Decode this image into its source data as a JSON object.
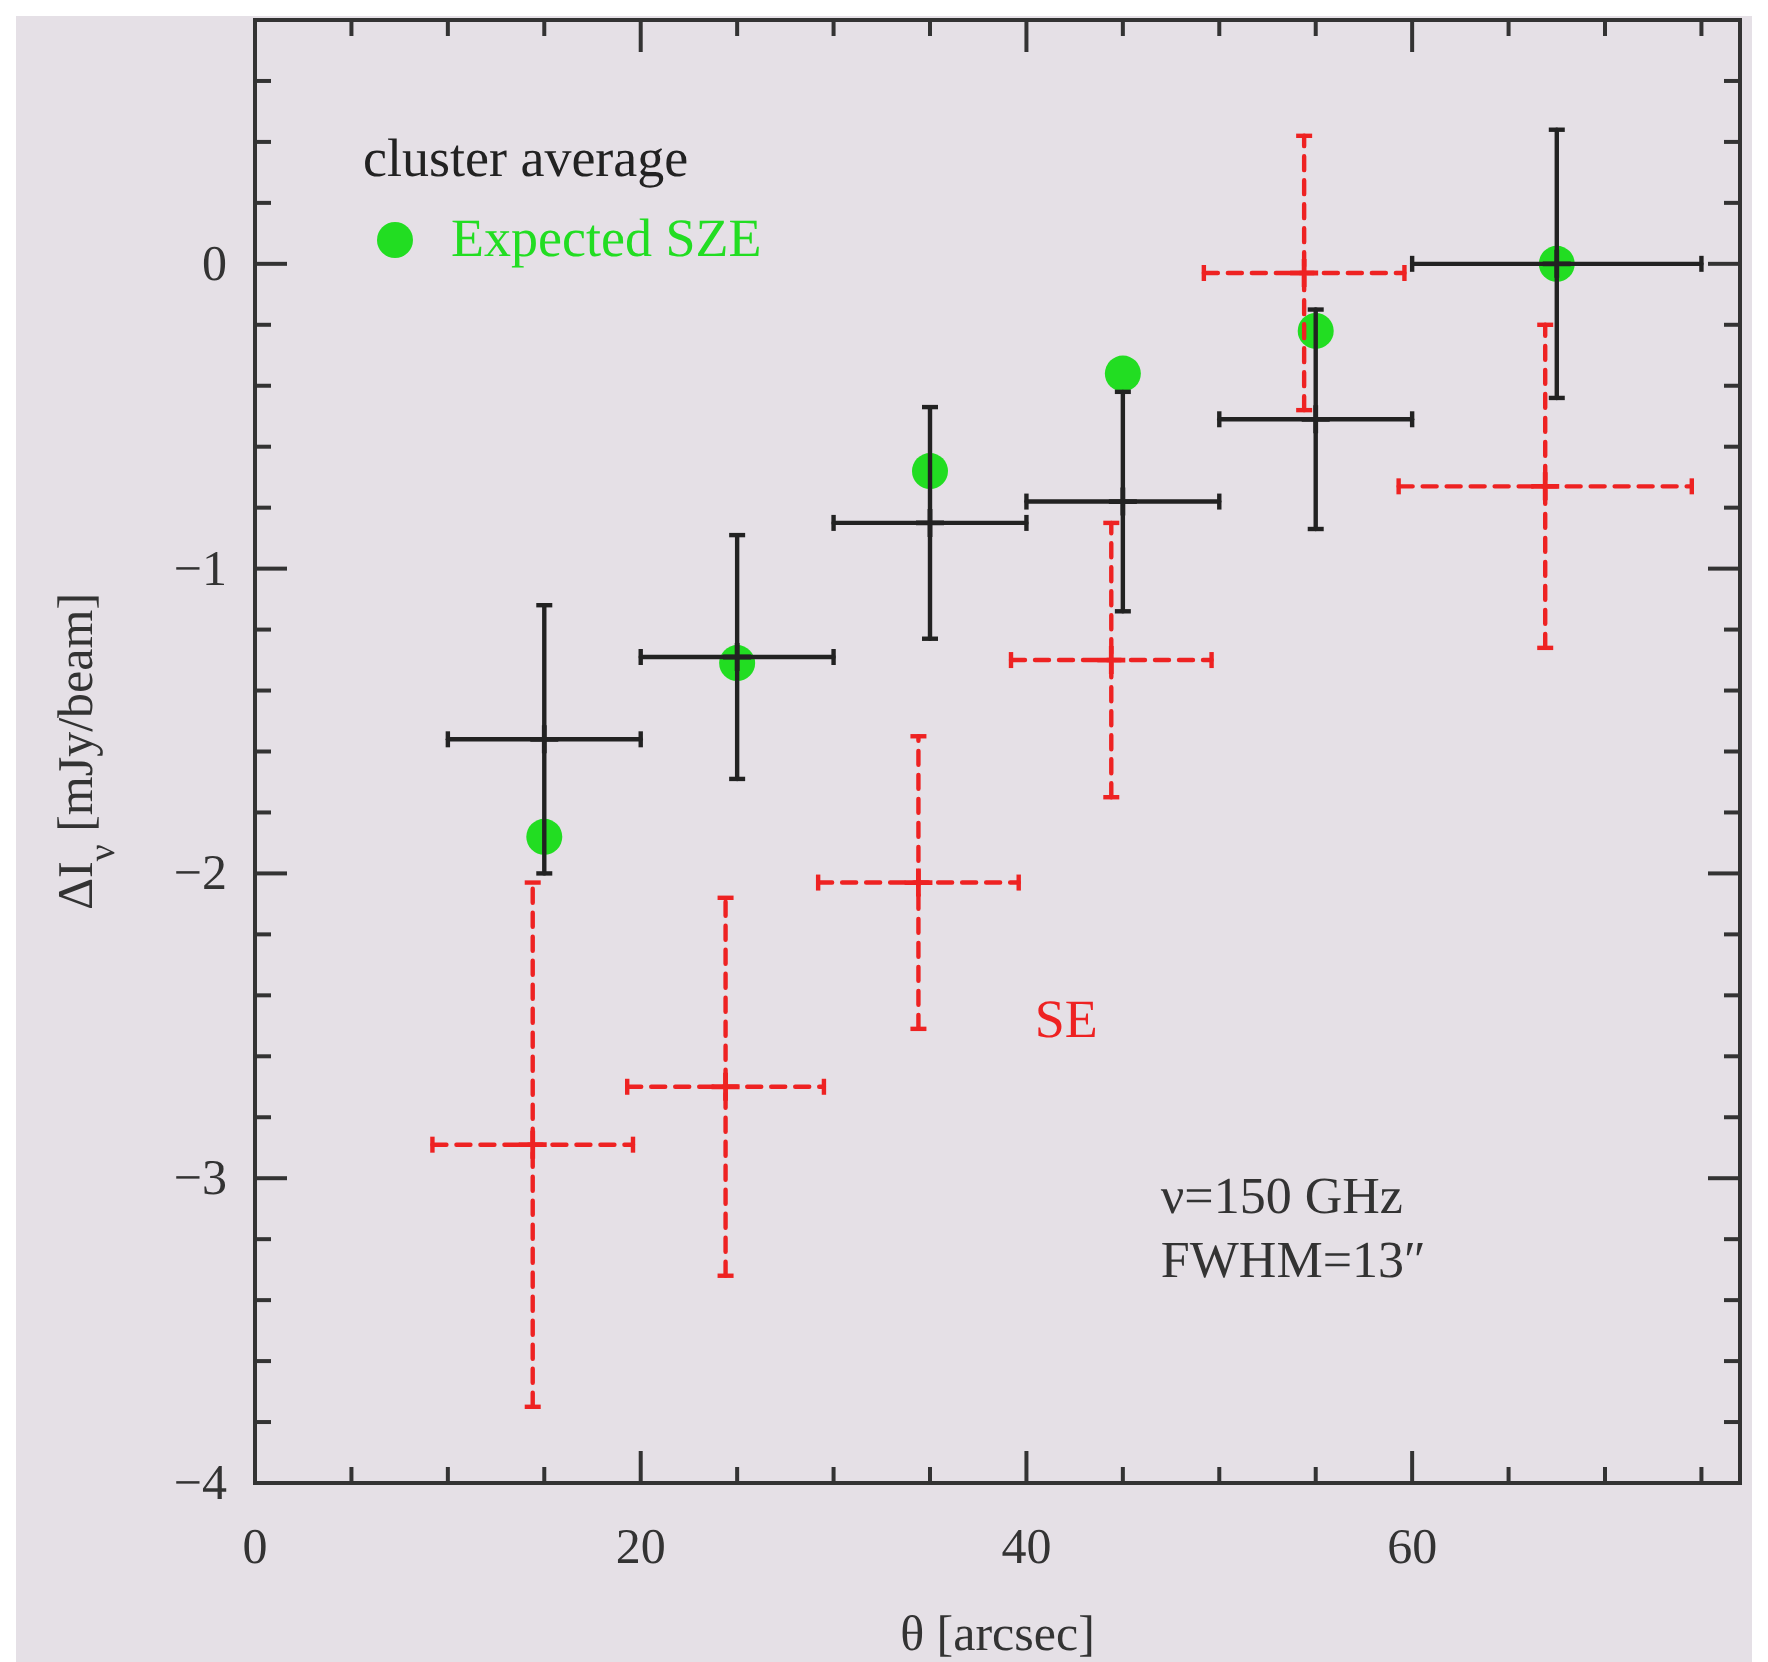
{
  "chart_data": {
    "type": "scatter",
    "xlabel": "θ [arcsec]",
    "ylabel": "ΔI$_{ν}$ [mJy/beam]",
    "xlim": [
      0,
      77
    ],
    "ylim": [
      -4,
      0.8
    ],
    "xticks": [
      0,
      {
        "value": 5,
        "label": null
      },
      {
        "value": 10,
        "label": null
      },
      {
        "value": 15,
        "label": null
      },
      20,
      {
        "value": 25,
        "label": null
      },
      {
        "value": 30,
        "label": null
      },
      {
        "value": 35,
        "label": null
      },
      40,
      {
        "value": 45,
        "label": null
      },
      {
        "value": 50,
        "label": null
      },
      {
        "value": 55,
        "label": null
      },
      60,
      {
        "value": 65,
        "label": null
      },
      {
        "value": 70,
        "label": null
      },
      {
        "value": 75,
        "label": null
      }
    ],
    "yticks": [
      -4,
      {
        "value": -3.8,
        "label": null
      },
      {
        "value": -3.6,
        "label": null
      },
      {
        "value": -3.4,
        "label": null
      },
      {
        "value": -3.2,
        "label": null
      },
      -3,
      {
        "value": -2.8,
        "label": null
      },
      {
        "value": -2.6,
        "label": null
      },
      {
        "value": -2.4,
        "label": null
      },
      {
        "value": -2.2,
        "label": null
      },
      -2,
      {
        "value": -1.8,
        "label": null
      },
      {
        "value": -1.6,
        "label": null
      },
      {
        "value": -1.4,
        "label": null
      },
      {
        "value": -1.2,
        "label": null
      },
      -1,
      {
        "value": -0.8,
        "label": null
      },
      {
        "value": -0.6,
        "label": null
      },
      {
        "value": -0.4,
        "label": null
      },
      {
        "value": -0.2,
        "label": null
      },
      0,
      {
        "value": 0.2,
        "label": null
      },
      {
        "value": 0.4,
        "label": null
      },
      {
        "value": 0.6,
        "label": null
      }
    ],
    "legend": "top left",
    "series": [
      {
        "name": "cluster average",
        "color": "#222222",
        "marker": "cross",
        "line_style": "solid",
        "x": [
          15,
          25,
          35,
          45,
          55,
          67.5
        ],
        "values": [
          -1.56,
          -1.29,
          -0.85,
          -0.78,
          -0.51,
          0
        ],
        "errors": [
          0.44,
          0.4,
          0.38,
          0.36,
          0.36,
          0.44
        ],
        "xerrors": [
          5,
          5,
          5,
          5,
          5,
          7.5
        ]
      },
      {
        "name": "Expected SZE",
        "color": "#22dd22",
        "marker": "circle",
        "x": [
          15,
          25,
          35,
          45,
          55,
          67.5
        ],
        "values": [
          -1.88,
          -1.31,
          -0.68,
          -0.36,
          -0.22,
          0
        ]
      },
      {
        "name": "SE",
        "color": "#ee2222",
        "marker": "cross",
        "line_style": "dashed",
        "x": [
          14.4,
          24.4,
          34.4,
          44.4,
          54.4,
          66.9
        ],
        "values": [
          -2.89,
          -2.7,
          -2.03,
          -1.3,
          -0.03,
          -0.73
        ],
        "errors": [
          0.86,
          0.62,
          0.48,
          0.45,
          0.45,
          0.53
        ],
        "xerrors": [
          5.2,
          5.1,
          5.2,
          5.2,
          5.2,
          7.6
        ]
      }
    ],
    "annotations": [
      "ν=150 GHz",
      "FWHM=13″"
    ]
  }
}
